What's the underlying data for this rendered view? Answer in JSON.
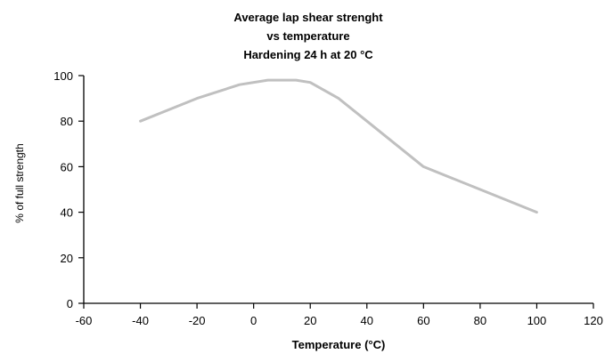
{
  "chart_data": {
    "type": "line",
    "title_lines": [
      "Average lap shear strenght",
      "vs temperature",
      "Hardening 24 h at 20 °C"
    ],
    "xlabel": "Temperature (°C)",
    "ylabel": "% of full strength",
    "xlim": [
      -60,
      120
    ],
    "ylim": [
      0,
      100
    ],
    "xticks": [
      -60,
      -40,
      -20,
      0,
      20,
      40,
      60,
      80,
      100,
      120
    ],
    "yticks": [
      0,
      20,
      40,
      60,
      80,
      100
    ],
    "grid": false,
    "legend": "none",
    "series": [
      {
        "color": "#c0c0c0",
        "x": [
          -40,
          -20,
          -5,
          5,
          15,
          20,
          30,
          40,
          60,
          80,
          100
        ],
        "y": [
          80,
          90,
          96,
          98,
          98,
          97,
          90,
          80,
          60,
          50,
          40
        ]
      }
    ]
  }
}
